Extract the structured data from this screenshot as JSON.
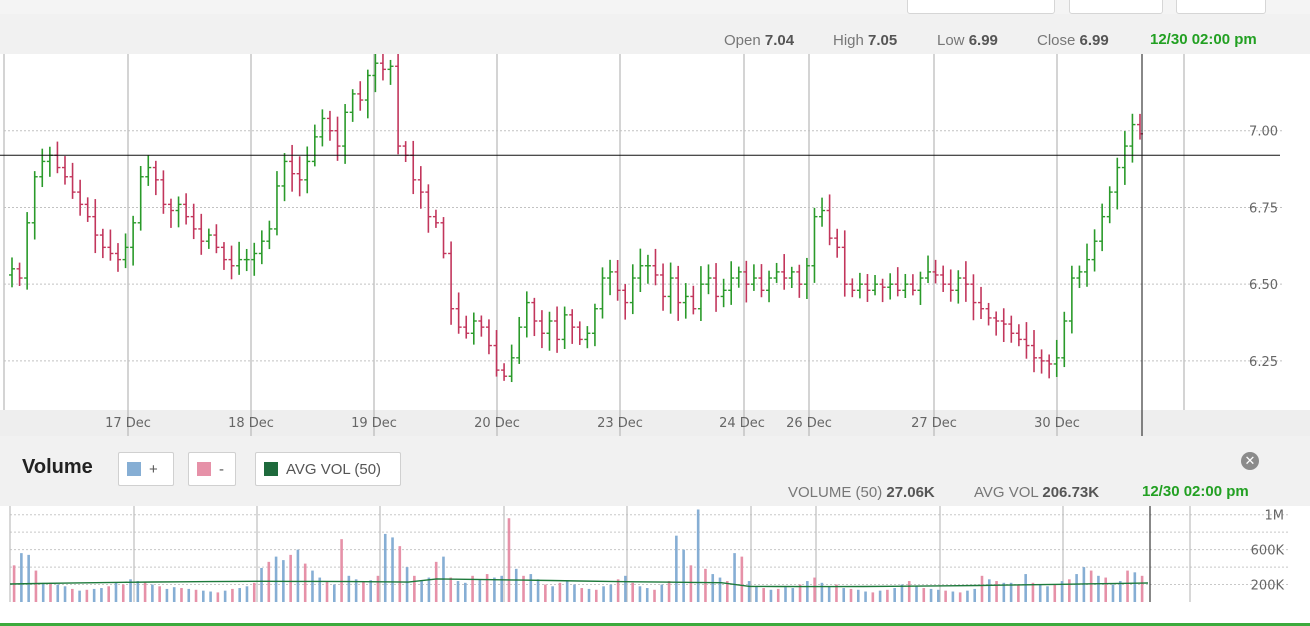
{
  "price": {
    "open_label": "Open",
    "open_value": "7.04",
    "high_label": "High",
    "high_value": "7.05",
    "low_label": "Low",
    "low_value": "6.99",
    "close_label": "Close",
    "close_value": "6.99",
    "timestamp": "12/30 02:00 pm"
  },
  "volume": {
    "title": "Volume",
    "legend_up": "+",
    "legend_down": "-",
    "legend_avg": "AVG VOL (50)",
    "vol50_label": "VOLUME (50)",
    "vol50_value": "27.06K",
    "avgvol_label": "AVG VOL",
    "avgvol_value": "206.73K",
    "timestamp": "12/30 02:00 pm"
  },
  "colors": {
    "up": "#2a9a2a",
    "down": "#c2365c",
    "vol_up": "#86aed4",
    "vol_down": "#e691a8",
    "avg_line": "#1e7a3c",
    "stamp": "#22a022"
  },
  "chart_data": [
    {
      "type": "ohlc",
      "x_labels": [
        "17 Dec",
        "18 Dec",
        "19 Dec",
        "20 Dec",
        "23 Dec",
        "24 Dec",
        "26 Dec",
        "27 Dec",
        "30 Dec"
      ],
      "y_ticks": [
        "7.00",
        "6.75",
        "6.50",
        "6.25"
      ],
      "ylim": [
        6.09,
        7.25
      ],
      "crosshair_price": 6.92,
      "closes": [
        6.55,
        6.52,
        6.7,
        6.85,
        6.9,
        6.92,
        6.88,
        6.85,
        6.8,
        6.76,
        6.72,
        6.66,
        6.62,
        6.6,
        6.58,
        6.62,
        6.7,
        6.85,
        6.88,
        6.84,
        6.76,
        6.74,
        6.76,
        6.72,
        6.68,
        6.64,
        6.66,
        6.62,
        6.58,
        6.56,
        6.58,
        6.58,
        6.6,
        6.64,
        6.68,
        6.82,
        6.9,
        6.86,
        6.84,
        6.9,
        6.98,
        7.04,
        7.0,
        6.95,
        7.06,
        7.12,
        7.1,
        7.18,
        7.22,
        7.2,
        7.21,
        6.95,
        6.92,
        6.84,
        6.8,
        6.72,
        6.7,
        6.6,
        6.42,
        6.36,
        6.34,
        6.38,
        6.36,
        6.3,
        6.22,
        6.2,
        6.26,
        6.36,
        6.44,
        6.38,
        6.34,
        6.38,
        6.32,
        6.4,
        6.36,
        6.32,
        6.34,
        6.42,
        6.52,
        6.54,
        6.48,
        6.44,
        6.52,
        6.56,
        6.56,
        6.53,
        6.46,
        6.52,
        6.44,
        6.46,
        6.42,
        6.5,
        6.52,
        6.46,
        6.48,
        6.52,
        6.54,
        6.5,
        6.52,
        6.48,
        6.52,
        6.54,
        6.52,
        6.54,
        6.5,
        6.56,
        6.72,
        6.74,
        6.65,
        6.62,
        6.5,
        6.48,
        6.5,
        6.48,
        6.5,
        6.49,
        6.5,
        6.48,
        6.5,
        6.48,
        6.52,
        6.54,
        6.53,
        6.5,
        6.48,
        6.52,
        6.5,
        6.44,
        6.42,
        6.39,
        6.38,
        6.37,
        6.34,
        6.32,
        6.3,
        6.26,
        6.25,
        6.24,
        6.26,
        6.38,
        6.52,
        6.54,
        6.58,
        6.64,
        6.72,
        6.8,
        6.88,
        6.95,
        7.02,
        6.99
      ]
    },
    {
      "type": "bar",
      "y_ticks": [
        "1M",
        "600K",
        "200K"
      ],
      "ylim": [
        0,
        1100000
      ],
      "up_volume_pct": 55,
      "avg_vol_level": 206730
    }
  ]
}
